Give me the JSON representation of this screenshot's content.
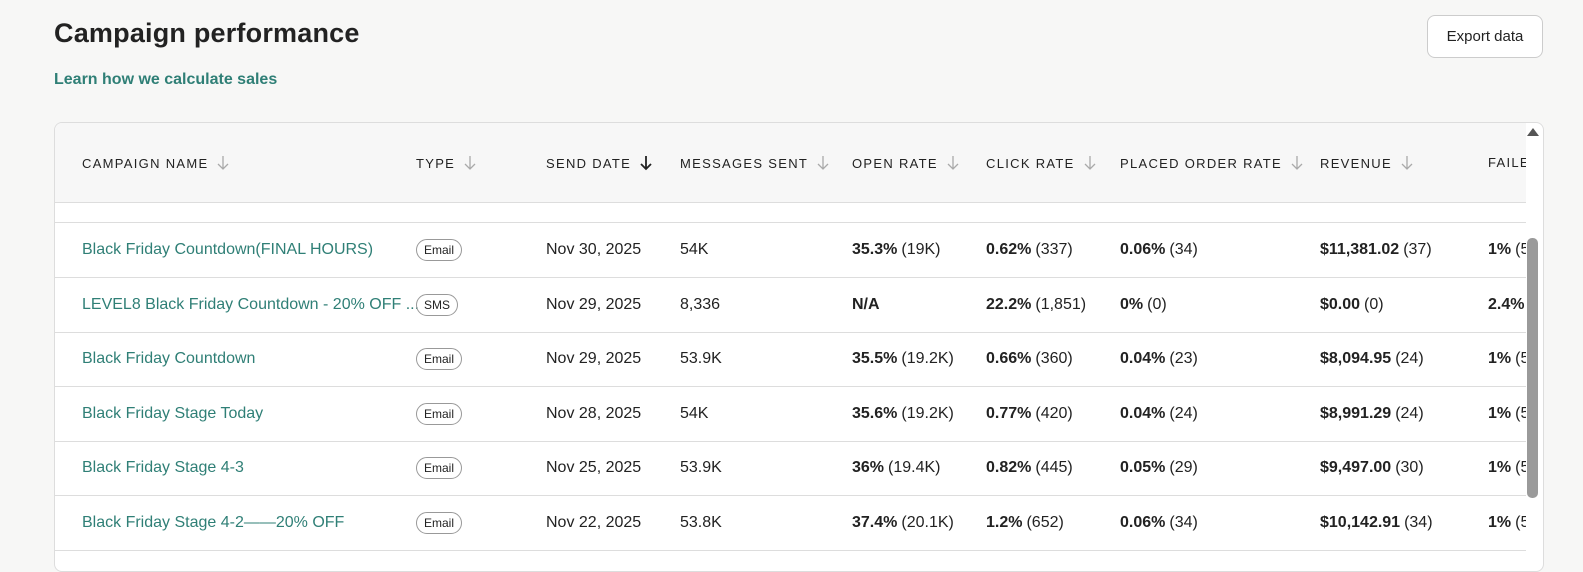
{
  "header": {
    "title": "Campaign performance",
    "link": "Learn how we calculate sales",
    "export_button": "Export data"
  },
  "table": {
    "columns": [
      "CAMPAIGN NAME",
      "TYPE",
      "SEND DATE",
      "MESSAGES SENT",
      "OPEN RATE",
      "CLICK RATE",
      "PLACED ORDER RATE",
      "REVENUE",
      "FAILE"
    ],
    "rows": [
      {
        "name": "Black Friday Countdown(FINAL HOURS)",
        "type": "Email",
        "send_date": "Nov 30, 2025",
        "messages_sent": "54K",
        "open_rate": {
          "main": "35.3%",
          "sub": "(19K)"
        },
        "click_rate": {
          "main": "0.62%",
          "sub": "(337)"
        },
        "placed_order_rate": {
          "main": "0.06%",
          "sub": "(34)"
        },
        "revenue": {
          "main": "$11,381.02",
          "sub": "(37)"
        },
        "failed": {
          "main": "1%",
          "sub": "(5"
        }
      },
      {
        "name": "LEVEL8 Black Friday Countdown - 20% OFF ...",
        "type": "SMS",
        "send_date": "Nov 29, 2025",
        "messages_sent": "8,336",
        "open_rate": {
          "main": "N/A"
        },
        "click_rate": {
          "main": "22.2%",
          "sub": "(1,851)"
        },
        "placed_order_rate": {
          "main": "0%",
          "sub": "(0)"
        },
        "revenue": {
          "main": "$0.00",
          "sub": "(0)"
        },
        "failed": {
          "main": "2.4%"
        }
      },
      {
        "name": "Black Friday Countdown",
        "type": "Email",
        "send_date": "Nov 29, 2025",
        "messages_sent": "53.9K",
        "open_rate": {
          "main": "35.5%",
          "sub": "(19.2K)"
        },
        "click_rate": {
          "main": "0.66%",
          "sub": "(360)"
        },
        "placed_order_rate": {
          "main": "0.04%",
          "sub": "(23)"
        },
        "revenue": {
          "main": "$8,094.95",
          "sub": "(24)"
        },
        "failed": {
          "main": "1%",
          "sub": "(5"
        }
      },
      {
        "name": "Black Friday Stage Today",
        "type": "Email",
        "send_date": "Nov 28, 2025",
        "messages_sent": "54K",
        "open_rate": {
          "main": "35.6%",
          "sub": "(19.2K)"
        },
        "click_rate": {
          "main": "0.77%",
          "sub": "(420)"
        },
        "placed_order_rate": {
          "main": "0.04%",
          "sub": "(24)"
        },
        "revenue": {
          "main": "$8,991.29",
          "sub": "(24)"
        },
        "failed": {
          "main": "1%",
          "sub": "(5"
        }
      },
      {
        "name": "Black Friday Stage 4-3",
        "type": "Email",
        "send_date": "Nov 25, 2025",
        "messages_sent": "53.9K",
        "open_rate": {
          "main": "36%",
          "sub": "(19.4K)"
        },
        "click_rate": {
          "main": "0.82%",
          "sub": "(445)"
        },
        "placed_order_rate": {
          "main": "0.05%",
          "sub": "(29)"
        },
        "revenue": {
          "main": "$9,497.00",
          "sub": "(30)"
        },
        "failed": {
          "main": "1%",
          "sub": "(5"
        }
      },
      {
        "name": "Black Friday Stage 4-2——20% OFF",
        "type": "Email",
        "send_date": "Nov 22, 2025",
        "messages_sent": "53.8K",
        "open_rate": {
          "main": "37.4%",
          "sub": "(20.1K)"
        },
        "click_rate": {
          "main": "1.2%",
          "sub": "(652)"
        },
        "placed_order_rate": {
          "main": "0.06%",
          "sub": "(34)"
        },
        "revenue": {
          "main": "$10,142.91",
          "sub": "(34)"
        },
        "failed": {
          "main": "1%",
          "sub": "(5"
        }
      }
    ]
  }
}
